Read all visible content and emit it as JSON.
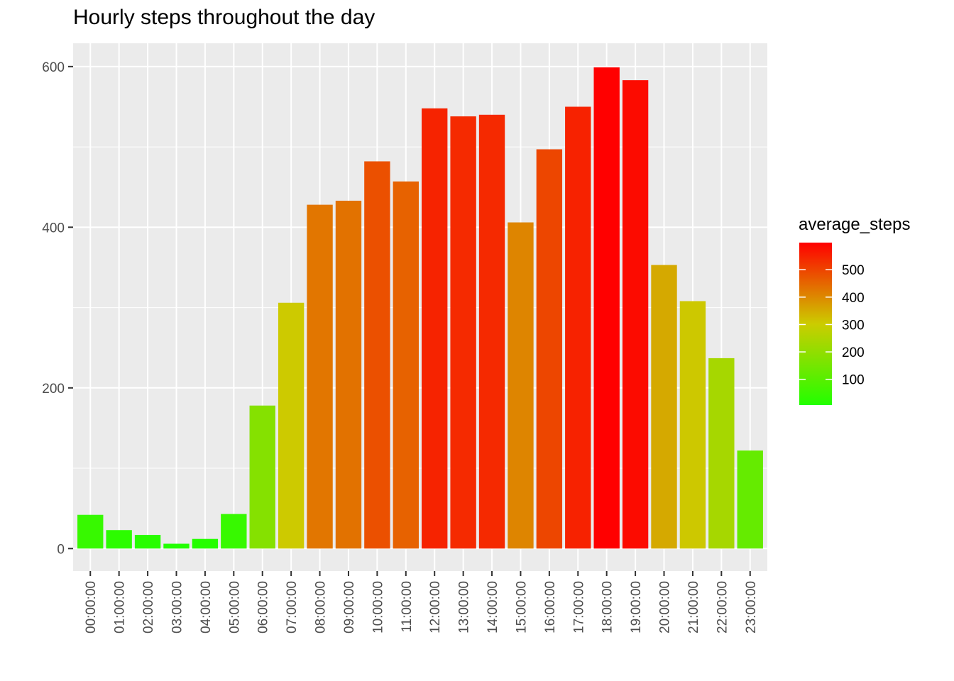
{
  "title": "Hourly steps throughout the day",
  "chart_data": {
    "type": "bar",
    "title": "Hourly steps throughout the day",
    "xlabel": "",
    "ylabel": "",
    "categories": [
      "00:00:00",
      "01:00:00",
      "02:00:00",
      "03:00:00",
      "04:00:00",
      "05:00:00",
      "06:00:00",
      "07:00:00",
      "08:00:00",
      "09:00:00",
      "10:00:00",
      "11:00:00",
      "12:00:00",
      "13:00:00",
      "14:00:00",
      "15:00:00",
      "16:00:00",
      "17:00:00",
      "18:00:00",
      "19:00:00",
      "20:00:00",
      "21:00:00",
      "22:00:00",
      "23:00:00"
    ],
    "values": [
      42,
      23,
      17,
      6,
      12,
      43,
      178,
      306,
      428,
      433,
      482,
      457,
      548,
      538,
      540,
      406,
      497,
      550,
      599,
      583,
      353,
      308,
      237,
      122
    ],
    "ylim": [
      -28,
      629
    ],
    "y_ticks": [
      0,
      200,
      400,
      600
    ],
    "grid": true,
    "legend": {
      "title": "average_steps",
      "position": "right",
      "ticks": [
        100,
        200,
        300,
        400,
        500
      ],
      "range": [
        6,
        599
      ],
      "colors": {
        "low": "#22ff00",
        "mid": "#cccc00",
        "high": "#ff0000"
      }
    },
    "panel_background": "#ebebeb"
  }
}
